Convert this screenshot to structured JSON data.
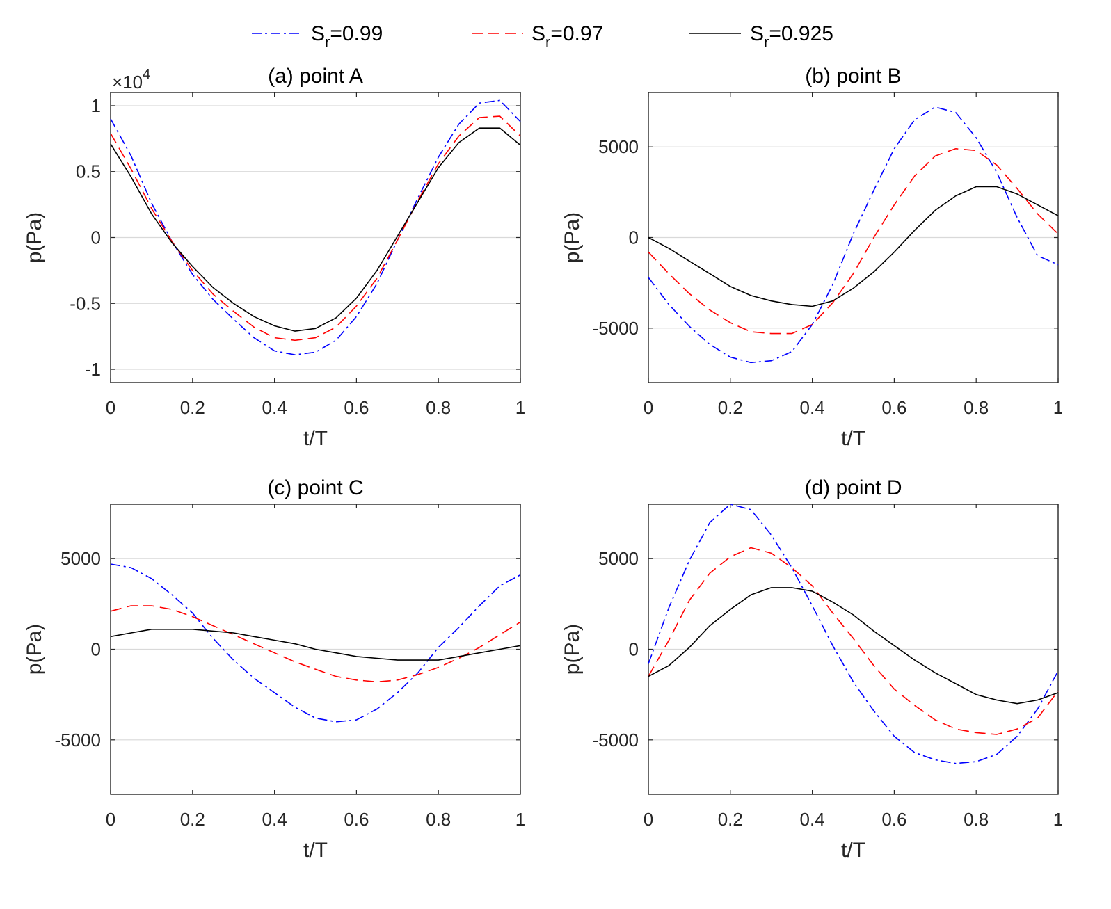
{
  "legend": {
    "entries": [
      {
        "main": "S",
        "sub": "r",
        "rest": "=0.99",
        "series": 0
      },
      {
        "main": "S",
        "sub": "r",
        "rest": "=0.97",
        "series": 1
      },
      {
        "main": "S",
        "sub": "r",
        "rest": "=0.925",
        "series": 2
      }
    ]
  },
  "series_style": [
    {
      "name": "Sr=0.99",
      "color": "#0000ff",
      "dash": "14,5,3,5"
    },
    {
      "name": "Sr=0.97",
      "color": "#ff0000",
      "dash": "16,8"
    },
    {
      "name": "Sr=0.925",
      "color": "#000000",
      "dash": ""
    }
  ],
  "grid_color": "#d9d9d9",
  "chart_data": [
    {
      "type": "line",
      "title": "(a) point A",
      "xlabel": "t/T",
      "ylabel": "p(Pa)",
      "xlim": [
        0,
        1
      ],
      "ylim": [
        -11000,
        11000
      ],
      "xticks": [
        0,
        0.2,
        0.4,
        0.6,
        0.8,
        1
      ],
      "xtick_labels": [
        "0",
        "0.2",
        "0.4",
        "0.6",
        "0.8",
        "1"
      ],
      "yticks": [
        -10000,
        -5000,
        0,
        5000,
        10000
      ],
      "ytick_labels": [
        "-1",
        "-0.5",
        "0",
        "0.5",
        "1"
      ],
      "exponent_label": {
        "base": "×10",
        "exp": "4"
      },
      "x": [
        0,
        0.05,
        0.1,
        0.15,
        0.2,
        0.25,
        0.3,
        0.35,
        0.4,
        0.45,
        0.5,
        0.55,
        0.6,
        0.65,
        0.7,
        0.75,
        0.8,
        0.85,
        0.9,
        0.95,
        1
      ],
      "series": [
        {
          "name": "Sr=0.99",
          "values": [
            9000,
            6200,
            2600,
            -300,
            -2800,
            -4700,
            -6200,
            -7600,
            -8600,
            -8900,
            -8700,
            -7800,
            -6000,
            -3500,
            -200,
            3000,
            6100,
            8600,
            10200,
            10400,
            8800
          ]
        },
        {
          "name": "Sr=0.97",
          "values": [
            7900,
            5200,
            2200,
            -300,
            -2500,
            -4300,
            -5600,
            -6800,
            -7600,
            -7800,
            -7600,
            -6800,
            -5200,
            -3100,
            -200,
            2800,
            5600,
            7700,
            9100,
            9200,
            7700
          ]
        },
        {
          "name": "Sr=0.925",
          "values": [
            7100,
            4600,
            1800,
            -400,
            -2200,
            -3800,
            -5000,
            -6000,
            -6700,
            -7100,
            -6900,
            -6100,
            -4600,
            -2500,
            100,
            2700,
            5300,
            7200,
            8300,
            8300,
            7000
          ]
        }
      ]
    },
    {
      "type": "line",
      "title": "(b) point B",
      "xlabel": "t/T",
      "ylabel": "p(Pa)",
      "xlim": [
        0,
        1
      ],
      "ylim": [
        -8000,
        8000
      ],
      "xticks": [
        0,
        0.2,
        0.4,
        0.6,
        0.8,
        1
      ],
      "xtick_labels": [
        "0",
        "0.2",
        "0.4",
        "0.6",
        "0.8",
        "1"
      ],
      "yticks": [
        -5000,
        0,
        5000
      ],
      "ytick_labels": [
        "-5000",
        "0",
        "5000"
      ],
      "x": [
        0,
        0.05,
        0.1,
        0.15,
        0.2,
        0.25,
        0.3,
        0.35,
        0.4,
        0.45,
        0.5,
        0.55,
        0.6,
        0.65,
        0.7,
        0.75,
        0.8,
        0.85,
        0.9,
        0.95,
        1
      ],
      "series": [
        {
          "name": "Sr=0.99",
          "values": [
            -2200,
            -3700,
            -4900,
            -5900,
            -6600,
            -6900,
            -6800,
            -6300,
            -4800,
            -2600,
            200,
            2600,
            4900,
            6500,
            7200,
            6900,
            5500,
            3600,
            1100,
            -1000,
            -1500
          ]
        },
        {
          "name": "Sr=0.97",
          "values": [
            -800,
            -2000,
            -3100,
            -4000,
            -4700,
            -5200,
            -5300,
            -5300,
            -4800,
            -3600,
            -2000,
            0,
            1800,
            3400,
            4500,
            4900,
            4800,
            4000,
            2700,
            1300,
            200
          ]
        },
        {
          "name": "Sr=0.925",
          "values": [
            0,
            -600,
            -1300,
            -2000,
            -2700,
            -3200,
            -3500,
            -3700,
            -3800,
            -3500,
            -2800,
            -1900,
            -800,
            400,
            1500,
            2300,
            2800,
            2800,
            2400,
            1800,
            1200
          ]
        }
      ]
    },
    {
      "type": "line",
      "title": "(c) point C",
      "xlabel": "t/T",
      "ylabel": "p(Pa)",
      "xlim": [
        0,
        1
      ],
      "ylim": [
        -8000,
        8000
      ],
      "xticks": [
        0,
        0.2,
        0.4,
        0.6,
        0.8,
        1
      ],
      "xtick_labels": [
        "0",
        "0.2",
        "0.4",
        "0.6",
        "0.8",
        "1"
      ],
      "yticks": [
        -5000,
        0,
        5000
      ],
      "ytick_labels": [
        "-5000",
        "0",
        "5000"
      ],
      "x": [
        0,
        0.05,
        0.1,
        0.15,
        0.2,
        0.25,
        0.3,
        0.35,
        0.4,
        0.45,
        0.5,
        0.55,
        0.6,
        0.65,
        0.7,
        0.75,
        0.8,
        0.85,
        0.9,
        0.95,
        1
      ],
      "series": [
        {
          "name": "Sr=0.99",
          "values": [
            4700,
            4500,
            3900,
            3000,
            2000,
            600,
            -600,
            -1600,
            -2400,
            -3200,
            -3800,
            -4000,
            -3900,
            -3300,
            -2400,
            -1300,
            100,
            1200,
            2400,
            3500,
            4100
          ]
        },
        {
          "name": "Sr=0.97",
          "values": [
            2100,
            2400,
            2400,
            2200,
            1800,
            1300,
            800,
            300,
            -200,
            -700,
            -1100,
            -1500,
            -1700,
            -1800,
            -1700,
            -1400,
            -1000,
            -500,
            100,
            800,
            1500
          ]
        },
        {
          "name": "Sr=0.925",
          "values": [
            700,
            900,
            1100,
            1100,
            1100,
            1000,
            900,
            700,
            500,
            300,
            0,
            -200,
            -400,
            -500,
            -600,
            -600,
            -600,
            -400,
            -200,
            0,
            200
          ]
        }
      ]
    },
    {
      "type": "line",
      "title": "(d) point D",
      "xlabel": "t/T",
      "ylabel": "p(Pa)",
      "xlim": [
        0,
        1
      ],
      "ylim": [
        -8000,
        8000
      ],
      "xticks": [
        0,
        0.2,
        0.4,
        0.6,
        0.8,
        1
      ],
      "xtick_labels": [
        "0",
        "0.2",
        "0.4",
        "0.6",
        "0.8",
        "1"
      ],
      "yticks": [
        -5000,
        0,
        5000
      ],
      "ytick_labels": [
        "-5000",
        "0",
        "5000"
      ],
      "x": [
        0,
        0.05,
        0.1,
        0.15,
        0.2,
        0.25,
        0.3,
        0.35,
        0.4,
        0.45,
        0.5,
        0.55,
        0.6,
        0.65,
        0.7,
        0.75,
        0.8,
        0.85,
        0.9,
        0.95,
        1
      ],
      "series": [
        {
          "name": "Sr=0.99",
          "values": [
            -800,
            2300,
            4900,
            7000,
            8000,
            7700,
            6300,
            4500,
            2400,
            200,
            -1800,
            -3400,
            -4800,
            -5700,
            -6100,
            -6300,
            -6200,
            -5800,
            -4800,
            -3300,
            -1200
          ]
        },
        {
          "name": "Sr=0.97",
          "values": [
            -1500,
            500,
            2700,
            4200,
            5100,
            5600,
            5300,
            4500,
            3500,
            2000,
            600,
            -900,
            -2200,
            -3100,
            -3900,
            -4400,
            -4600,
            -4700,
            -4400,
            -3800,
            -2300
          ]
        },
        {
          "name": "Sr=0.925",
          "values": [
            -1500,
            -900,
            100,
            1300,
            2200,
            3000,
            3400,
            3400,
            3200,
            2600,
            1900,
            1000,
            200,
            -600,
            -1300,
            -1900,
            -2500,
            -2800,
            -3000,
            -2800,
            -2400
          ]
        }
      ]
    }
  ]
}
